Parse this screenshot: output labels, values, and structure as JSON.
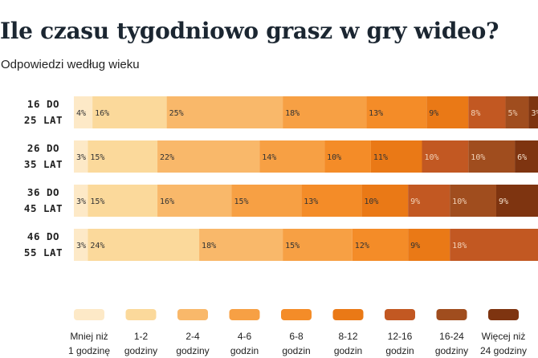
{
  "title": "Ile czasu tygodniowo grasz w gry wideo?",
  "subtitle": "Odpowiedzi według wieku",
  "chart_data": {
    "type": "bar",
    "orientation": "horizontal",
    "stacked": true,
    "percent_stacked": true,
    "categories": [
      [
        "16 DO",
        "25 LAT"
      ],
      [
        "26 DO",
        "35 LAT"
      ],
      [
        "36 DO",
        "45 LAT"
      ],
      [
        "46 DO",
        "55 LAT"
      ]
    ],
    "series": [
      {
        "name": "Mniej niż 1 godzinę",
        "legend": [
          "Mniej niż",
          "1 godzinę"
        ],
        "color": "#fde9c7",
        "values": [
          4,
          3,
          3,
          3
        ]
      },
      {
        "name": "1-2 godziny",
        "legend": [
          "1-2",
          "godziny"
        ],
        "color": "#fbd99b",
        "values": [
          16,
          15,
          15,
          24
        ]
      },
      {
        "name": "2-4 godziny",
        "legend": [
          "2-4",
          "godziny"
        ],
        "color": "#f9b86a",
        "values": [
          25,
          22,
          16,
          18
        ]
      },
      {
        "name": "4-6 godzin",
        "legend": [
          "4-6",
          "godzin"
        ],
        "color": "#f7a044",
        "values": [
          18,
          14,
          15,
          15
        ]
      },
      {
        "name": "6-8 godzin",
        "legend": [
          "6-8",
          "godzin"
        ],
        "color": "#f48c28",
        "values": [
          13,
          10,
          13,
          12
        ]
      },
      {
        "name": "8-12 godzin",
        "legend": [
          "8-12",
          "godzin"
        ],
        "color": "#ea7916",
        "values": [
          9,
          11,
          10,
          9
        ]
      },
      {
        "name": "12-16 godzin",
        "legend": [
          "12-16",
          "godzin"
        ],
        "color": "#c25822",
        "values": [
          8,
          10,
          9,
          18
        ]
      },
      {
        "name": "16-24 godziny",
        "legend": [
          "16-24",
          "godziny"
        ],
        "color": "#a04d1e",
        "values": [
          5,
          10,
          10,
          null
        ]
      },
      {
        "name": "Więcej niż 24 godziny",
        "legend": [
          "Więcej niż",
          "24 godziny"
        ],
        "color": "#7e3410",
        "values": [
          3,
          6,
          9,
          null
        ]
      }
    ],
    "label_colors": [
      "#333333",
      "#333333",
      "#333333",
      "#333333",
      "#333333",
      "#333333",
      "#f2d2b8",
      "#f2d2b8",
      "#f5e0cc"
    ],
    "xlim": [
      0,
      100
    ],
    "grid": false,
    "legend_position": "bottom"
  }
}
